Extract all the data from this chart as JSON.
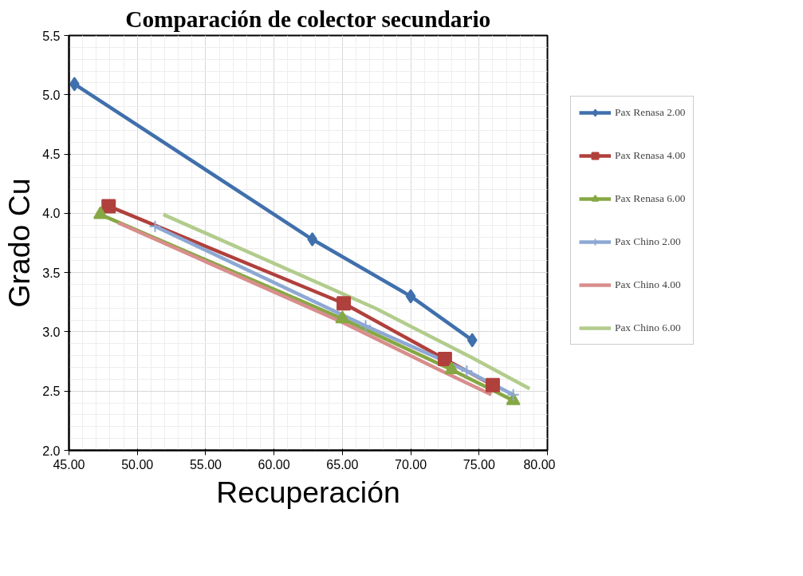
{
  "chart_data": {
    "type": "line",
    "title": "Comparación de colector secundario",
    "xlabel": "Recuperación",
    "ylabel": "Grado Cu",
    "xlim": [
      45,
      80
    ],
    "ylim": [
      2.0,
      5.5
    ],
    "xticks": [
      {
        "value": 45,
        "label": "45.00"
      },
      {
        "value": 50,
        "label": "50.00"
      },
      {
        "value": 55,
        "label": "55.00"
      },
      {
        "value": 60,
        "label": "60.00"
      },
      {
        "value": 65,
        "label": "65.00"
      },
      {
        "value": 70,
        "label": "70.00"
      },
      {
        "value": 75,
        "label": "75.00"
      },
      {
        "value": 80,
        "label": "80.00"
      }
    ],
    "yticks": [
      {
        "value": 2,
        "label": "2.0"
      },
      {
        "value": 2.5,
        "label": "2.5"
      },
      {
        "value": 3,
        "label": "3.0"
      },
      {
        "value": 3.5,
        "label": "3.5"
      },
      {
        "value": 4,
        "label": "4.0"
      },
      {
        "value": 4.5,
        "label": "4.5"
      },
      {
        "value": 5,
        "label": "5.0"
      },
      {
        "value": 5.5,
        "label": "5.5"
      }
    ],
    "grid": true,
    "legend": "right",
    "line_style": "solid",
    "series": [
      {
        "name": "Pax Renasa 2.00",
        "color": "#4070ac",
        "marker": "diamond",
        "x": [
          45.4,
          62.8,
          70.0,
          74.5
        ],
        "values": [
          5.09,
          3.78,
          3.3,
          2.93
        ]
      },
      {
        "name": "Pax Renasa 4.00",
        "color": "#b0403c",
        "marker": "square",
        "x": [
          47.9,
          65.1,
          72.5,
          76.0
        ],
        "values": [
          4.06,
          3.24,
          2.77,
          2.55
        ]
      },
      {
        "name": "Pax Renasa 6.00",
        "color": "#86a844",
        "marker": "triangle",
        "x": [
          47.3,
          65.0,
          73.0,
          77.5
        ],
        "values": [
          3.99,
          3.11,
          2.68,
          2.42
        ]
      },
      {
        "name": "Pax Chino 2.00",
        "color": "#8ea8d4",
        "marker": "cross",
        "x": [
          51.3,
          66.7,
          74.1,
          77.5
        ],
        "values": [
          3.89,
          3.05,
          2.67,
          2.47
        ]
      },
      {
        "name": "Pax Chino 4.00",
        "color": "#d88e8c",
        "marker": "none",
        "x": [
          48.6,
          65.0,
          71.9,
          75.9
        ],
        "values": [
          3.92,
          3.08,
          2.69,
          2.47
        ]
      },
      {
        "name": "Pax Chino 6.00",
        "color": "#b2cc8c",
        "marker": "none",
        "x": [
          51.9,
          67.4,
          74.5,
          78.7
        ],
        "values": [
          3.99,
          3.2,
          2.78,
          2.52
        ]
      }
    ]
  }
}
